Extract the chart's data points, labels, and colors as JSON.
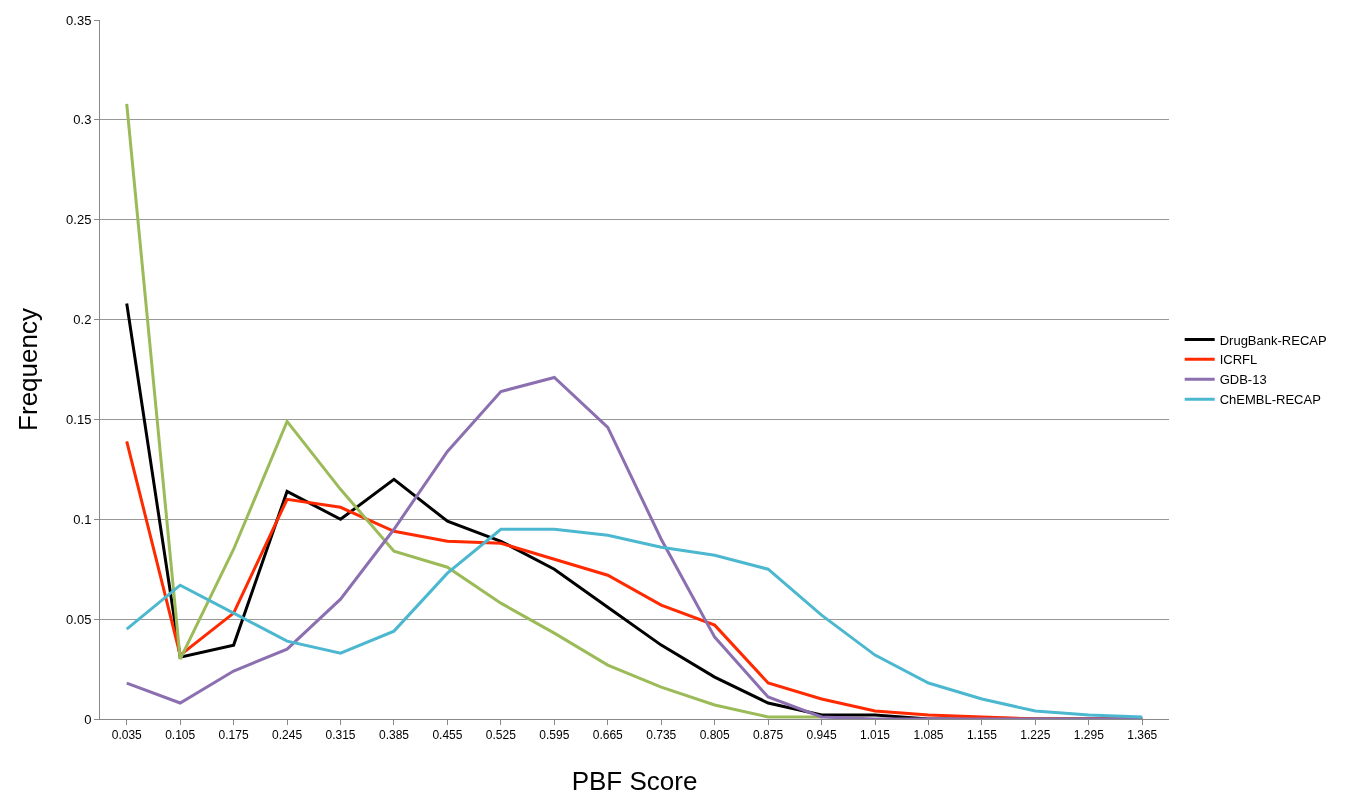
{
  "chart_data": {
    "type": "line",
    "xlabel": "PBF Score",
    "ylabel": "Frequency",
    "categories": [
      "0.035",
      "0.105",
      "0.175",
      "0.245",
      "0.315",
      "0.385",
      "0.455",
      "0.525",
      "0.595",
      "0.665",
      "0.735",
      "0.805",
      "0.875",
      "0.945",
      "1.015",
      "1.085",
      "1.155",
      "1.225",
      "1.295",
      "1.365"
    ],
    "series": [
      {
        "name": "DrugBank-RECAP",
        "color": "#000000",
        "values": [
          0.208,
          0.031,
          0.037,
          0.114,
          0.1,
          0.12,
          0.099,
          0.089,
          0.075,
          0.056,
          0.037,
          0.021,
          0.008,
          0.002,
          0.002,
          0,
          0,
          0,
          0,
          0
        ]
      },
      {
        "name": "ICRFL",
        "color": "#ff2a00",
        "values": [
          0.139,
          0.032,
          0.053,
          0.11,
          0.106,
          0.094,
          0.089,
          0.088,
          0.08,
          0.072,
          0.057,
          0.047,
          0.018,
          0.01,
          0.004,
          0.002,
          0.001,
          0,
          0,
          0
        ]
      },
      {
        "color": "#9bbb59",
        "values": [
          0.308,
          0.03,
          0.085,
          0.149,
          0.115,
          0.084,
          0.076,
          0.058,
          0.043,
          0.027,
          0.016,
          0.007,
          0.001,
          0.001,
          null,
          null,
          null,
          null,
          null,
          null
        ]
      },
      {
        "name": "GDB-13",
        "color": "#8c6fb0",
        "values": [
          0.018,
          0.008,
          0.024,
          0.035,
          0.06,
          0.095,
          0.134,
          0.164,
          0.171,
          0.146,
          0.09,
          0.041,
          0.011,
          0.001,
          0,
          0,
          0,
          0,
          0,
          0
        ]
      },
      {
        "name": "ChEMBL-RECAP",
        "color": "#4bb8d0",
        "values": [
          0.045,
          0.067,
          0.053,
          0.039,
          0.033,
          0.044,
          0.073,
          0.095,
          0.095,
          0.092,
          0.086,
          0.082,
          0.075,
          0.052,
          0.032,
          0.018,
          0.01,
          0.004,
          0.002,
          0.001
        ]
      }
    ],
    "ylim": [
      0,
      0.35
    ],
    "yticks": [
      0,
      0.05,
      0.1,
      0.15,
      0.2,
      0.25,
      0.3,
      0.35
    ],
    "grid": "y",
    "legend": "right",
    "marker": "none",
    "line_style": "solid"
  }
}
